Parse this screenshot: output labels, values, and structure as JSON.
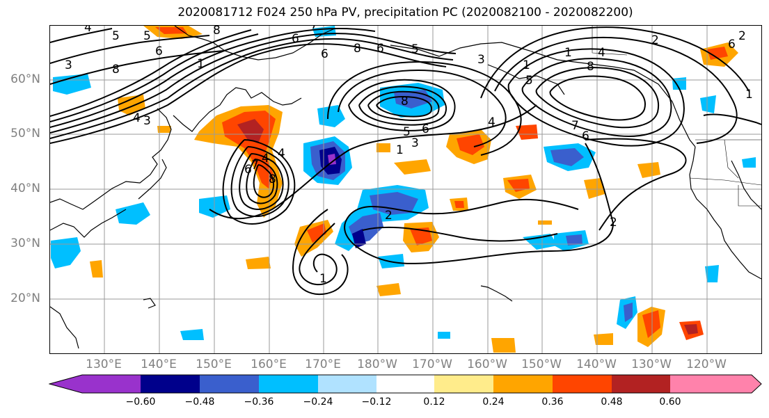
{
  "title": "2020081712 F024 250 hPa PV, precipitation PC (2020082100 - 2020082200)",
  "lat_labels": [
    "60°N",
    "50°N",
    "40°N",
    "30°N",
    "20°N"
  ],
  "lon_labels": [
    "130°E",
    "140°E",
    "150°E",
    "160°E",
    "170°E",
    "180°W",
    "170°W",
    "160°W",
    "150°W",
    "140°W",
    "130°W",
    "120°W"
  ],
  "colorbar": {
    "ticks": [
      "−0.60",
      "−0.48",
      "−0.36",
      "−0.24",
      "−0.12",
      "0.12",
      "0.24",
      "0.36",
      "0.48",
      "0.60"
    ],
    "colors": [
      "#9932cc",
      "#00008b",
      "#3a5fcd",
      "#00bfff",
      "#b0e2ff",
      "#ffffff",
      "#ffec8b",
      "#ffa500",
      "#ff4500",
      "#b22222",
      "#ff82ab"
    ]
  },
  "contour_labels": [
    "4",
    "5",
    "5",
    "6",
    "8",
    "8",
    "3",
    "6",
    "1",
    "4",
    "3",
    "6",
    "8",
    "7",
    "6",
    "4",
    "2",
    "2",
    "1",
    "4",
    "7",
    "8",
    "6",
    "5",
    "4",
    "8",
    "8",
    "5",
    "6",
    "3",
    "1",
    "4",
    "7",
    "6",
    "5",
    "3",
    "1",
    "2",
    "2",
    "1",
    "1",
    "6"
  ],
  "colors": {
    "axis_label": "#808080",
    "coast": "#000000",
    "grid": "#9a9a9a"
  }
}
